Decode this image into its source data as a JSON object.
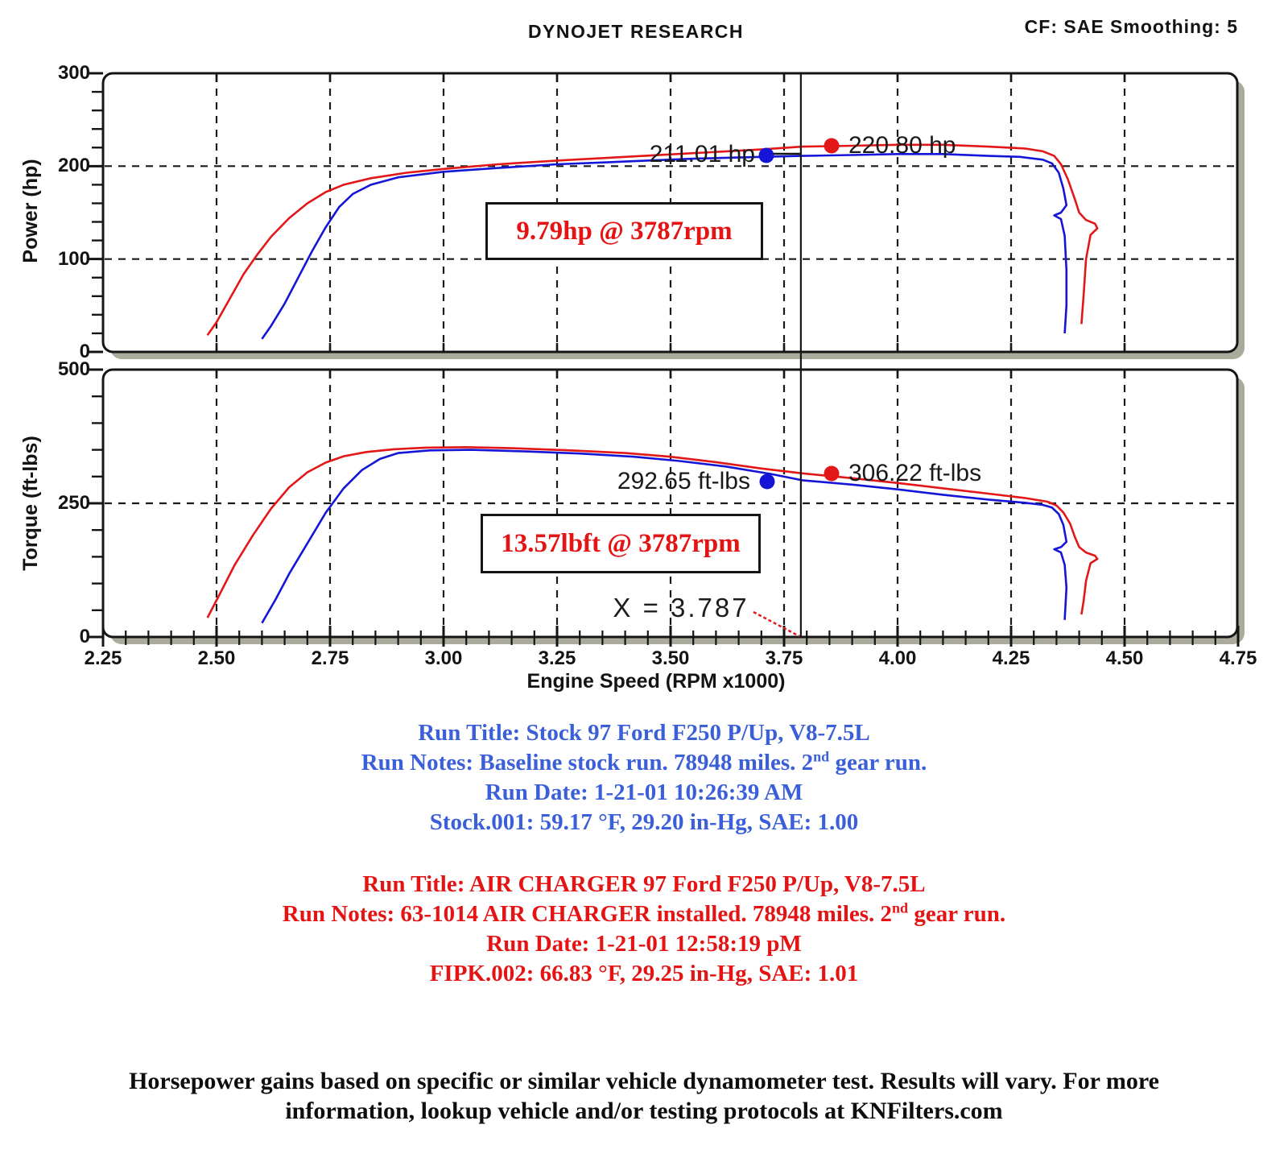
{
  "header": {
    "title": "DYNOJET RESEARCH",
    "correction": "CF: SAE  Smoothing: 5"
  },
  "x_axis": {
    "label": "Engine Speed (RPM x1000)",
    "xlim": [
      2.25,
      4.75
    ],
    "ticks": [
      "2.25",
      "2.50",
      "2.75",
      "3.00",
      "3.25",
      "3.50",
      "3.75",
      "4.00",
      "4.25",
      "4.50",
      "4.75"
    ],
    "minor_step": 0.05,
    "cursor_x": 3.787
  },
  "chart_data": [
    {
      "type": "line",
      "title": "Power vs Engine Speed",
      "ylabel": "Power (hp)",
      "ylim": [
        0,
        300
      ],
      "yticks": [
        0,
        100,
        200,
        300
      ],
      "ytick_labels": [
        "0",
        "100",
        "200",
        "300"
      ],
      "grid_y": [
        100,
        200
      ],
      "y_minor_step": 20,
      "cursor_values": {
        "stock": "211.01 hp",
        "air_charger": "220.80 hp"
      },
      "gain_note": "9.79hp @ 3787rpm",
      "series": [
        {
          "name": "Stock",
          "color": "#1515d8",
          "points": [
            [
              2.6,
              14
            ],
            [
              2.62,
              28
            ],
            [
              2.65,
              52
            ],
            [
              2.68,
              80
            ],
            [
              2.71,
              108
            ],
            [
              2.74,
              134
            ],
            [
              2.77,
              156
            ],
            [
              2.8,
              170
            ],
            [
              2.84,
              180
            ],
            [
              2.9,
              188
            ],
            [
              3.0,
              194
            ],
            [
              3.12,
              198
            ],
            [
              3.25,
              202
            ],
            [
              3.4,
              205
            ],
            [
              3.55,
              208
            ],
            [
              3.7,
              210
            ],
            [
              3.79,
              211
            ],
            [
              3.9,
              212
            ],
            [
              4.0,
              213
            ],
            [
              4.1,
              213
            ],
            [
              4.2,
              211
            ],
            [
              4.27,
              210
            ],
            [
              4.32,
              207
            ],
            [
              4.34,
              203
            ],
            [
              4.355,
              193
            ],
            [
              4.365,
              176
            ],
            [
              4.372,
              158
            ],
            [
              4.36,
              150
            ],
            [
              4.345,
              147
            ],
            [
              4.36,
              143
            ],
            [
              4.368,
              125
            ],
            [
              4.372,
              88
            ],
            [
              4.372,
              50
            ],
            [
              4.368,
              20
            ]
          ]
        },
        {
          "name": "AIR CHARGER",
          "color": "#e31717",
          "points": [
            [
              2.48,
              18
            ],
            [
              2.5,
              32
            ],
            [
              2.53,
              58
            ],
            [
              2.56,
              84
            ],
            [
              2.59,
              105
            ],
            [
              2.62,
              124
            ],
            [
              2.66,
              144
            ],
            [
              2.7,
              160
            ],
            [
              2.74,
              172
            ],
            [
              2.78,
              180
            ],
            [
              2.84,
              187
            ],
            [
              2.92,
              193
            ],
            [
              3.0,
              197
            ],
            [
              3.12,
              202
            ],
            [
              3.25,
              206
            ],
            [
              3.4,
              210
            ],
            [
              3.55,
              214
            ],
            [
              3.7,
              218
            ],
            [
              3.79,
              221
            ],
            [
              3.9,
              222
            ],
            [
              4.0,
              223
            ],
            [
              4.1,
              223
            ],
            [
              4.2,
              221
            ],
            [
              4.28,
              219
            ],
            [
              4.32,
              216
            ],
            [
              4.345,
              211
            ],
            [
              4.36,
              202
            ],
            [
              4.375,
              186
            ],
            [
              4.39,
              165
            ],
            [
              4.4,
              150
            ],
            [
              4.415,
              142
            ],
            [
              4.435,
              138
            ],
            [
              4.44,
              133
            ],
            [
              4.425,
              126
            ],
            [
              4.415,
              100
            ],
            [
              4.41,
              62
            ],
            [
              4.405,
              30
            ]
          ]
        }
      ]
    },
    {
      "type": "line",
      "title": "Torque vs Engine Speed",
      "ylabel": "Torque (ft-lbs)",
      "ylim": [
        0,
        500
      ],
      "yticks": [
        0,
        250,
        500
      ],
      "ytick_labels": [
        "0",
        "250",
        "500"
      ],
      "grid_y": [
        250
      ],
      "y_minor_step": 50,
      "cursor_values": {
        "stock": "292.65 ft-lbs",
        "air_charger": "306.22 ft-lbs"
      },
      "gain_note": "13.57lbft @ 3787rpm",
      "cursor_label": "X = 3.787",
      "series": [
        {
          "name": "Stock",
          "color": "#1515d8",
          "points": [
            [
              2.6,
              26
            ],
            [
              2.63,
              70
            ],
            [
              2.66,
              118
            ],
            [
              2.7,
              175
            ],
            [
              2.74,
              232
            ],
            [
              2.78,
              278
            ],
            [
              2.82,
              312
            ],
            [
              2.86,
              333
            ],
            [
              2.9,
              344
            ],
            [
              2.97,
              349
            ],
            [
              3.06,
              350
            ],
            [
              3.18,
              347
            ],
            [
              3.3,
              343
            ],
            [
              3.42,
              337
            ],
            [
              3.52,
              329
            ],
            [
              3.62,
              319
            ],
            [
              3.72,
              305
            ],
            [
              3.79,
              293
            ],
            [
              3.9,
              285
            ],
            [
              4.0,
              276
            ],
            [
              4.1,
              266
            ],
            [
              4.2,
              257
            ],
            [
              4.28,
              251
            ],
            [
              4.32,
              247
            ],
            [
              4.34,
              242
            ],
            [
              4.355,
              230
            ],
            [
              4.365,
              210
            ],
            [
              4.372,
              178
            ],
            [
              4.36,
              168
            ],
            [
              4.345,
              164
            ],
            [
              4.36,
              158
            ],
            [
              4.368,
              135
            ],
            [
              4.372,
              92
            ],
            [
              4.368,
              32
            ]
          ]
        },
        {
          "name": "AIR CHARGER",
          "color": "#e31717",
          "points": [
            [
              2.48,
              36
            ],
            [
              2.51,
              85
            ],
            [
              2.54,
              135
            ],
            [
              2.58,
              190
            ],
            [
              2.62,
              240
            ],
            [
              2.66,
              280
            ],
            [
              2.7,
              308
            ],
            [
              2.74,
              326
            ],
            [
              2.78,
              338
            ],
            [
              2.83,
              346
            ],
            [
              2.89,
              351
            ],
            [
              2.96,
              354
            ],
            [
              3.05,
              355
            ],
            [
              3.15,
              353
            ],
            [
              3.28,
              349
            ],
            [
              3.4,
              344
            ],
            [
              3.5,
              337
            ],
            [
              3.6,
              327
            ],
            [
              3.7,
              315
            ],
            [
              3.79,
              306
            ],
            [
              3.9,
              297
            ],
            [
              4.0,
              288
            ],
            [
              4.1,
              278
            ],
            [
              4.2,
              268
            ],
            [
              4.28,
              260
            ],
            [
              4.33,
              253
            ],
            [
              4.35,
              246
            ],
            [
              4.365,
              233
            ],
            [
              4.38,
              212
            ],
            [
              4.39,
              188
            ],
            [
              4.4,
              168
            ],
            [
              4.415,
              158
            ],
            [
              4.435,
              152
            ],
            [
              4.44,
              146
            ],
            [
              4.425,
              138
            ],
            [
              4.415,
              105
            ],
            [
              4.41,
              68
            ],
            [
              4.405,
              42
            ]
          ]
        }
      ]
    }
  ],
  "run_info_stock": {
    "title": "Run Title: Stock 97 Ford F250 P/Up, V8-7.5L",
    "notes_pre": "Run Notes: Baseline stock run. 78948 miles. 2",
    "notes_sup": "nd",
    "notes_post": " gear run.",
    "date": "Run Date: 1-21-01 10:26:39 AM",
    "conditions": "Stock.001: 59.17 °F, 29.20 in-Hg, SAE: 1.00",
    "color": "#3a5fd8"
  },
  "run_info_aircharger": {
    "title": "Run Title: AIR CHARGER 97 Ford F250 P/Up, V8-7.5L",
    "notes_pre": "Run Notes: 63-1014 AIR CHARGER installed. 78948 miles. 2",
    "notes_sup": "nd",
    "notes_post": " gear run.",
    "date": "Run Date: 1-21-01 12:58:19 pM",
    "conditions": "FIPK.002: 66.83 °F, 29.25 in-Hg, SAE: 1.01",
    "color": "#e51414"
  },
  "footer": {
    "line1": "Horsepower gains based on specific or similar vehicle dynamometer test. Results will vary. For more",
    "line2": "information, lookup vehicle and/or testing protocols at KNFilters.com"
  }
}
